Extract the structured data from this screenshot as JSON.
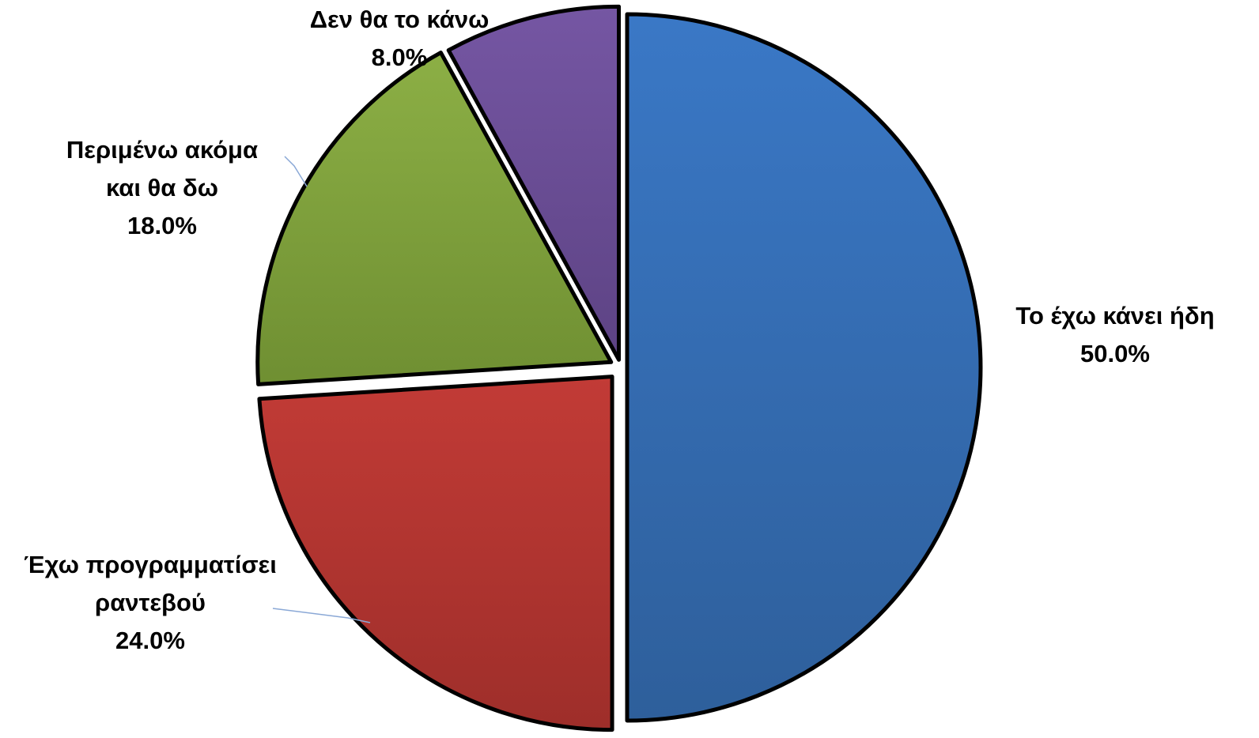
{
  "chart_data": {
    "type": "pie",
    "categories": [
      "Το έχω κάνει ήδη",
      "Έχω προγραμματίσει ραντεβού",
      "Περιμένω ακόμα και θα δω",
      "Δεν θα το κάνω"
    ],
    "values": [
      50.0,
      24.0,
      18.0,
      8.0
    ],
    "value_labels": [
      "50.0%",
      "24.0%",
      "18.0%",
      "8.0%"
    ],
    "label_lines": [
      [
        "Το έχω κάνει ήδη",
        "50.0%"
      ],
      [
        "Έχω προγραμματίσει",
        "ραντεβού",
        "24.0%"
      ],
      [
        "Περιμένω ακόμα",
        "και θα δω",
        "18.0%"
      ],
      [
        "Δεν θα το κάνω",
        "8.0%"
      ]
    ],
    "colors": [
      "#3a78c6",
      "#c23b36",
      "#8caf45",
      "#7556a3"
    ],
    "dark_colors": [
      "#2e5f9b",
      "#9e2e2a",
      "#6f8f32",
      "#5d4384"
    ],
    "start_angle": "12 o'clock",
    "direction": "clockwise",
    "exploded": true,
    "legend": "none",
    "title": ""
  }
}
